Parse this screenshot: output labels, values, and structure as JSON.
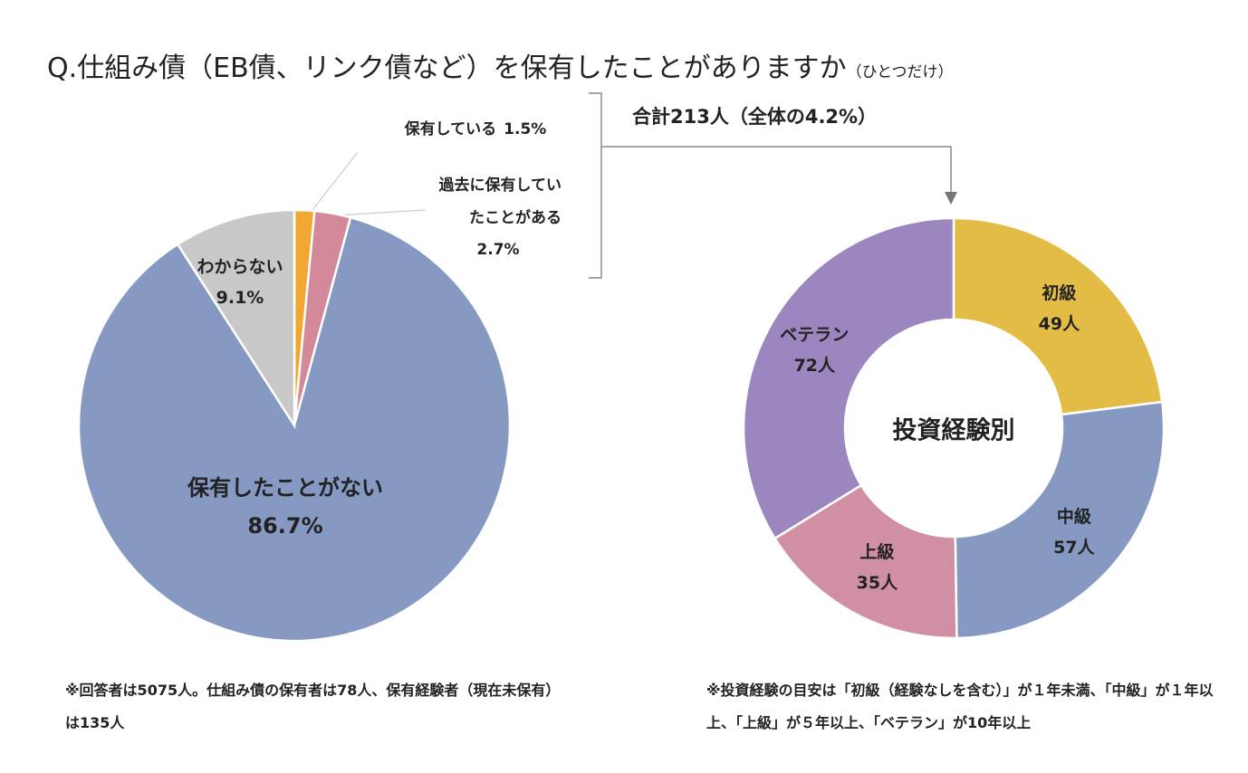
{
  "title": "Q.仕組み債（EB債、リンク債など）を保有したことがありますか",
  "title_note": "（ひとつだけ）",
  "chart_data": [
    {
      "type": "pie",
      "categories": [
        "保有している",
        "過去に保有していたことがある",
        "保有したことがない",
        "わからない"
      ],
      "values": [
        1.5,
        2.7,
        86.7,
        9.1
      ],
      "value_labels": [
        "1.5%",
        "2.7%",
        "86.7%",
        "9.1%"
      ],
      "colors": [
        "#f0a830",
        "#d4899a",
        "#8599c2",
        "#c8c8c8"
      ],
      "note": "※回答者は5075人。仕組み債の保有者は78人、保有経験者（現在未保有）は135人"
    },
    {
      "type": "donut",
      "center_label": "投資経験別",
      "annotation": "合計213人（全体の4.2%）",
      "categories": [
        "初級",
        "中級",
        "上級",
        "ベテラン"
      ],
      "values": [
        49,
        57,
        35,
        72
      ],
      "value_labels": [
        "49人",
        "57人",
        "35人",
        "72人"
      ],
      "colors": [
        "#e3bc45",
        "#8599c2",
        "#d08fa3",
        "#9b86c0"
      ],
      "note": "※投資経験の目安は「初級（経験なしを含む）」が１年未満、「中級」が１年以上、「上級」が５年以上、「ベテラン」が10年以上"
    }
  ]
}
